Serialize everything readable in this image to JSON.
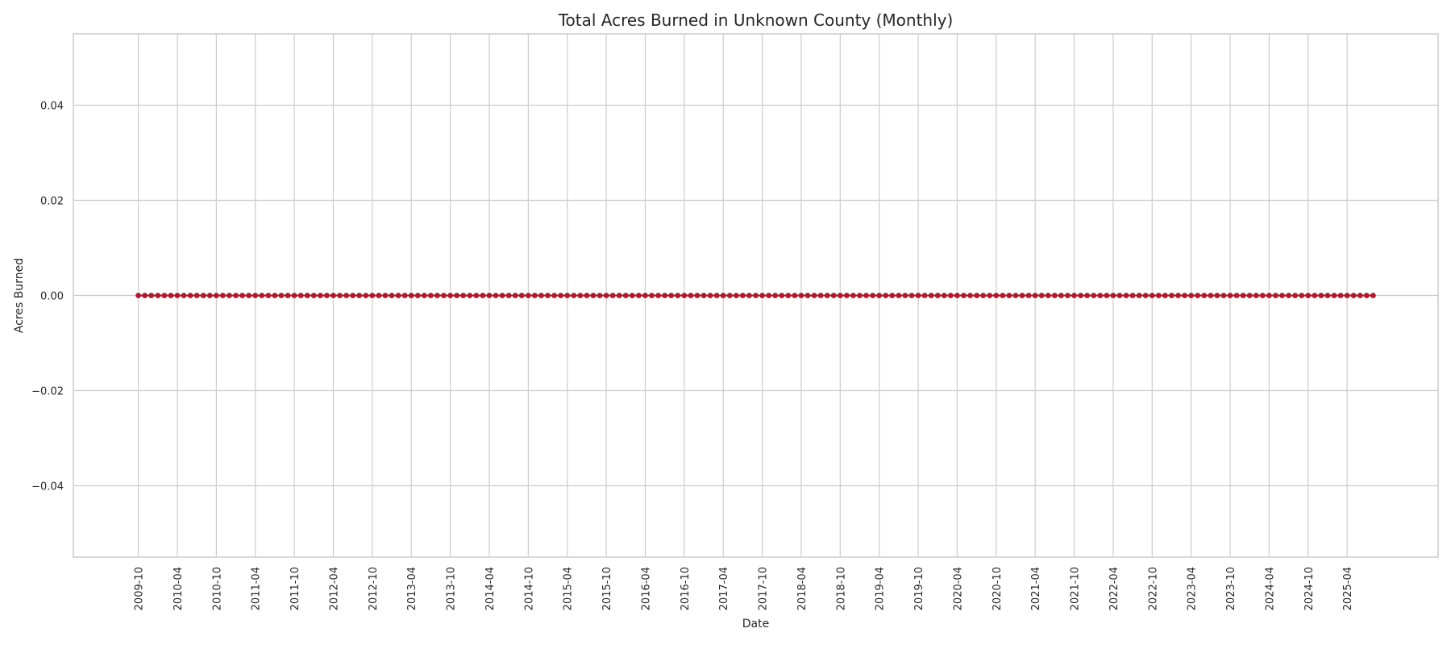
{
  "chart_data": {
    "type": "line",
    "title": "Total Acres Burned in Unknown County (Monthly)",
    "xlabel": "Date",
    "ylabel": "Acres Burned",
    "x_start": "2009-10",
    "x_end": "2025-08",
    "x_ticks": [
      "2009-10",
      "2010-04",
      "2010-10",
      "2011-04",
      "2011-10",
      "2012-04",
      "2012-10",
      "2013-04",
      "2013-10",
      "2014-04",
      "2014-10",
      "2015-04",
      "2015-10",
      "2016-04",
      "2016-10",
      "2017-04",
      "2017-10",
      "2018-04",
      "2018-10",
      "2019-04",
      "2019-10",
      "2020-04",
      "2020-10",
      "2021-04",
      "2021-10",
      "2022-04",
      "2022-10",
      "2023-04",
      "2023-10",
      "2024-04",
      "2024-10",
      "2025-04"
    ],
    "x_lim": [
      "2008-12",
      "2026-06"
    ],
    "y_ticks": [
      -0.04,
      -0.02,
      0.0,
      0.02,
      0.04
    ],
    "y_tick_labels": [
      "−0.04",
      "−0.02",
      "0.00",
      "0.02",
      "0.04"
    ],
    "ylim": [
      -0.055,
      0.055
    ],
    "series": [
      {
        "value": 0,
        "color": "#b2182b"
      }
    ],
    "grid": true,
    "colors": {
      "grid": "#cccccc",
      "marker": "#b2182b",
      "text": "#262626"
    }
  }
}
